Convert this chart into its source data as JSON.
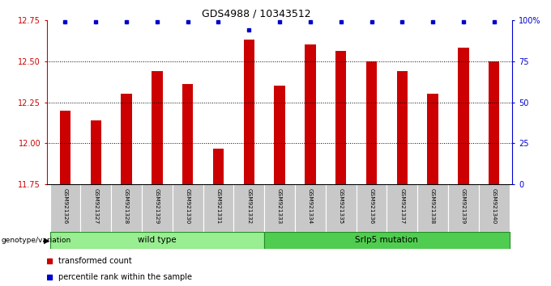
{
  "title": "GDS4988 / 10343512",
  "samples": [
    "GSM921326",
    "GSM921327",
    "GSM921328",
    "GSM921329",
    "GSM921330",
    "GSM921331",
    "GSM921332",
    "GSM921333",
    "GSM921334",
    "GSM921335",
    "GSM921336",
    "GSM921337",
    "GSM921338",
    "GSM921339",
    "GSM921340"
  ],
  "transformed_counts": [
    12.2,
    12.14,
    12.3,
    12.44,
    12.36,
    11.97,
    12.63,
    12.35,
    12.6,
    12.56,
    12.5,
    12.44,
    12.3,
    12.58,
    12.5
  ],
  "ylim_left": [
    11.75,
    12.75
  ],
  "ylim_right": [
    0,
    100
  ],
  "yticks_left": [
    11.75,
    12.0,
    12.25,
    12.5,
    12.75
  ],
  "yticks_right": [
    0,
    25,
    50,
    75,
    100
  ],
  "bar_color": "#CC0000",
  "square_color": "#0000CC",
  "group1_label": "wild type",
  "group2_label": "Srlp5 mutation",
  "group1_color": "#98EE90",
  "group2_color": "#50CD50",
  "group1_indices": [
    0,
    1,
    2,
    3,
    4,
    5,
    6
  ],
  "group2_indices": [
    7,
    8,
    9,
    10,
    11,
    12,
    13,
    14
  ],
  "legend_tc": "transformed count",
  "legend_pr": "percentile rank within the sample",
  "genotype_label": "genotype/variation",
  "percentile_near_top": [
    0,
    1,
    2,
    3,
    4,
    5,
    7,
    8,
    9,
    10,
    11,
    12,
    13,
    14
  ],
  "percentile_lower": [
    6
  ]
}
